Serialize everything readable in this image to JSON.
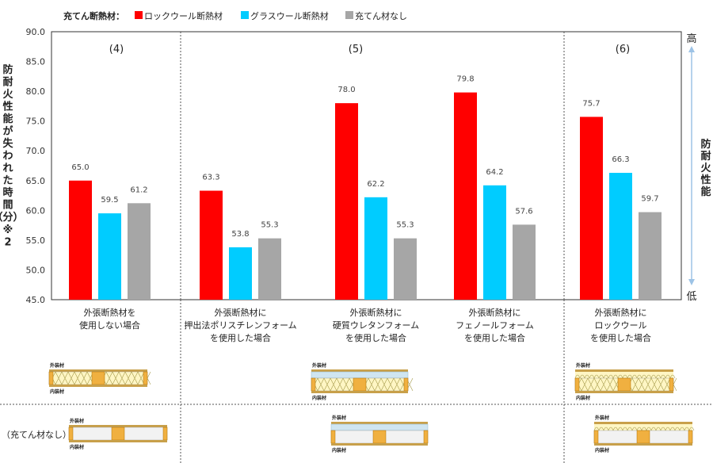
{
  "legend": {
    "title": "充てん断熱材：",
    "items": [
      {
        "label": "ロックウール断熱材",
        "color": "#ff0000"
      },
      {
        "label": "グラスウール断熱材",
        "color": "#00ccff"
      },
      {
        "label": "充てん材なし",
        "color": "#a6a6a6"
      }
    ]
  },
  "y_axis_title_chars": [
    "防",
    "耐",
    "火",
    "性",
    "能",
    "が",
    "失",
    "わ",
    "れ",
    "た",
    "時",
    "間",
    "（分）",
    "※",
    "2"
  ],
  "right_axis": {
    "high": "高",
    "low": "低",
    "chars": [
      "防",
      "耐",
      "火",
      "性",
      "能"
    ]
  },
  "panels": [
    {
      "label": "(4)",
      "groups": [
        0
      ]
    },
    {
      "label": "(5)",
      "groups": [
        1,
        2,
        3
      ]
    },
    {
      "label": "(6)",
      "groups": [
        4
      ]
    }
  ],
  "group_labels": [
    [
      "外張断熱材を",
      "使用しない場合"
    ],
    [
      "外張断熱材に",
      "押出法ポリスチレンフォーム",
      "を使用した場合"
    ],
    [
      "外張断熱材に",
      "硬質ウレタンフォーム",
      "を使用した場合"
    ],
    [
      "外張断熱材に",
      "フェノールフォーム",
      "を使用した場合"
    ],
    [
      "外張断熱材に",
      "ロックウール",
      "を使用した場合"
    ]
  ],
  "diagram_labels": {
    "outer": "外装材",
    "inner": "内装材"
  },
  "no_fill_row_label": "（充てん材なし）",
  "chart_data": {
    "type": "bar",
    "categories": [
      "(4) 外張断熱材を使用しない場合",
      "(5) 押出法ポリスチレンフォーム",
      "(5) 硬質ウレタンフォーム",
      "(5) フェノールフォーム",
      "(6) ロックウール"
    ],
    "series": [
      {
        "name": "ロックウール断熱材",
        "values": [
          65.0,
          63.3,
          78.0,
          79.8,
          75.7
        ]
      },
      {
        "name": "グラスウール断熱材",
        "values": [
          59.5,
          53.8,
          62.2,
          64.2,
          66.3
        ]
      },
      {
        "name": "充てん材なし",
        "values": [
          61.2,
          55.3,
          55.3,
          57.6,
          59.7
        ]
      }
    ],
    "ylabel": "防耐火性能が失われた時間（分）※2",
    "ylim": [
      45.0,
      90.0
    ],
    "yticks": [
      45.0,
      50.0,
      55.0,
      60.0,
      65.0,
      70.0,
      75.0,
      80.0,
      85.0,
      90.0
    ],
    "grid": false,
    "legend_position": "top"
  }
}
